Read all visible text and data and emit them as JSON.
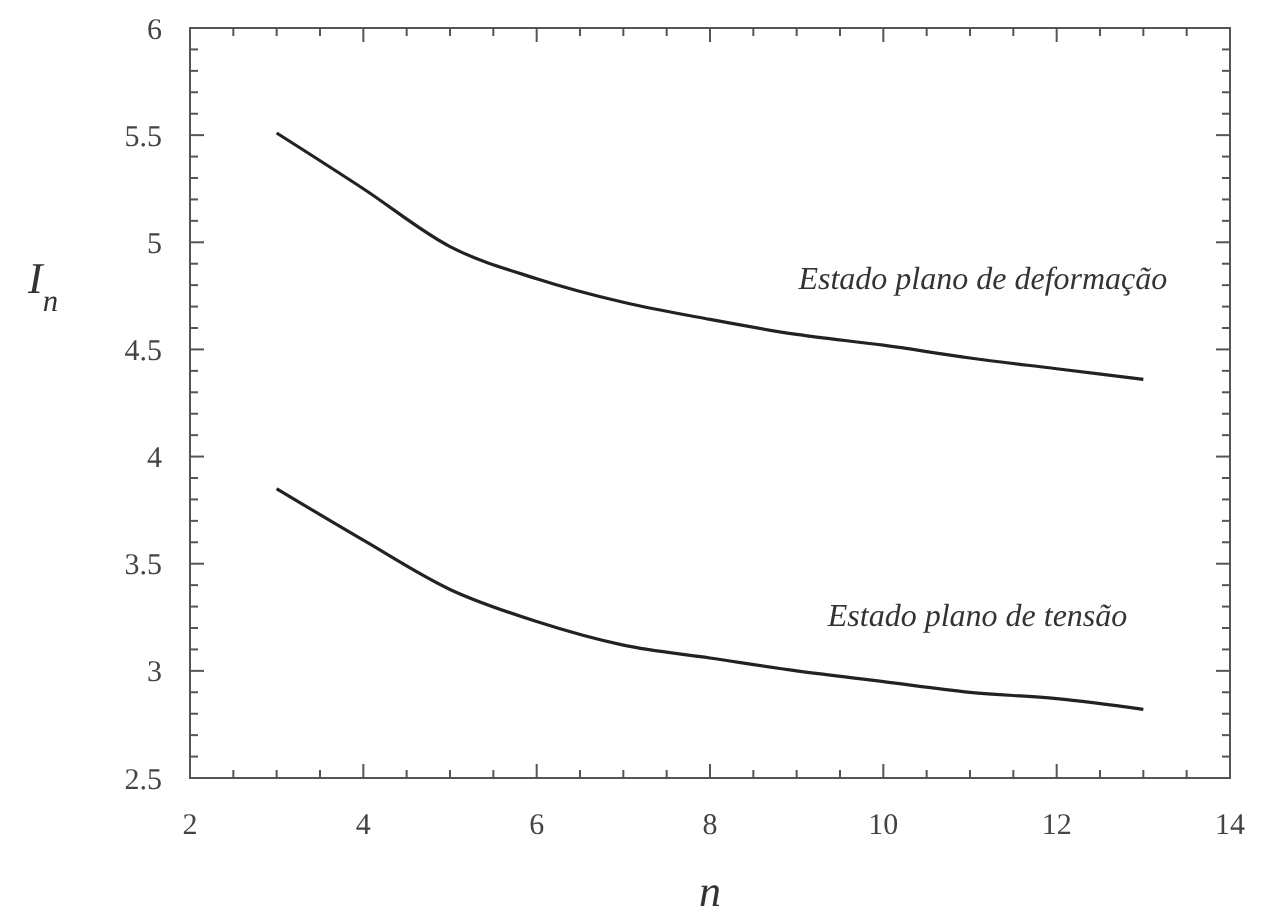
{
  "chart_data": {
    "type": "line",
    "xlabel": "n",
    "ylabel": "I$_{n}$",
    "xlim": [
      2,
      14
    ],
    "ylim": [
      2.5,
      6
    ],
    "xticks": [
      2,
      {
        "value": 2.5,
        "label": null
      },
      {
        "value": 3,
        "label": null
      },
      {
        "value": 3.5,
        "label": null
      },
      4,
      {
        "value": 4.5,
        "label": null
      },
      {
        "value": 5,
        "label": null
      },
      {
        "value": 5.5,
        "label": null
      },
      6,
      {
        "value": 6.5,
        "label": null
      },
      {
        "value": 7,
        "label": null
      },
      {
        "value": 7.5,
        "label": null
      },
      8,
      {
        "value": 8.5,
        "label": null
      },
      {
        "value": 9,
        "label": null
      },
      {
        "value": 9.5,
        "label": null
      },
      10,
      {
        "value": 10.5,
        "label": null
      },
      {
        "value": 11,
        "label": null
      },
      {
        "value": 11.5,
        "label": null
      },
      12,
      {
        "value": 12.5,
        "label": null
      },
      {
        "value": 13,
        "label": null
      },
      {
        "value": 13.5,
        "label": null
      },
      14
    ],
    "yticks": [
      2.5,
      {
        "value": 2.6,
        "label": null
      },
      {
        "value": 2.7,
        "label": null
      },
      {
        "value": 2.8,
        "label": null
      },
      {
        "value": 2.9,
        "label": null
      },
      3,
      {
        "value": 3.1,
        "label": null
      },
      {
        "value": 3.2,
        "label": null
      },
      {
        "value": 3.3,
        "label": null
      },
      {
        "value": 3.4,
        "label": null
      },
      3.5,
      {
        "value": 3.6,
        "label": null
      },
      {
        "value": 3.7,
        "label": null
      },
      {
        "value": 3.8,
        "label": null
      },
      {
        "value": 3.9,
        "label": null
      },
      4,
      {
        "value": 4.1,
        "label": null
      },
      {
        "value": 4.2,
        "label": null
      },
      {
        "value": 4.3,
        "label": null
      },
      {
        "value": 4.4,
        "label": null
      },
      4.5,
      {
        "value": 4.6,
        "label": null
      },
      {
        "value": 4.7,
        "label": null
      },
      {
        "value": 4.8,
        "label": null
      },
      {
        "value": 4.9,
        "label": null
      },
      5,
      {
        "value": 5.1,
        "label": null
      },
      {
        "value": 5.2,
        "label": null
      },
      {
        "value": 5.3,
        "label": null
      },
      {
        "value": 5.4,
        "label": null
      },
      5.5,
      {
        "value": 5.6,
        "label": null
      },
      {
        "value": 5.7,
        "label": null
      },
      {
        "value": 5.8,
        "label": null
      },
      {
        "value": 5.9,
        "label": null
      },
      6
    ],
    "x": [
      3,
      4,
      5,
      6,
      7,
      8,
      9,
      10,
      11,
      12,
      13
    ],
    "series": [
      {
        "name": "Estado plano de deformação",
        "color": "#222222",
        "values": [
          5.51,
          5.25,
          4.98,
          4.83,
          4.72,
          4.64,
          4.57,
          4.52,
          4.46,
          4.41,
          4.36
        ]
      },
      {
        "name": "Estado plano de tensão",
        "color": "#222222",
        "values": [
          3.85,
          3.61,
          3.38,
          3.23,
          3.12,
          3.06,
          3.0,
          2.95,
          2.9,
          2.87,
          2.82
        ]
      }
    ],
    "grid": false
  }
}
